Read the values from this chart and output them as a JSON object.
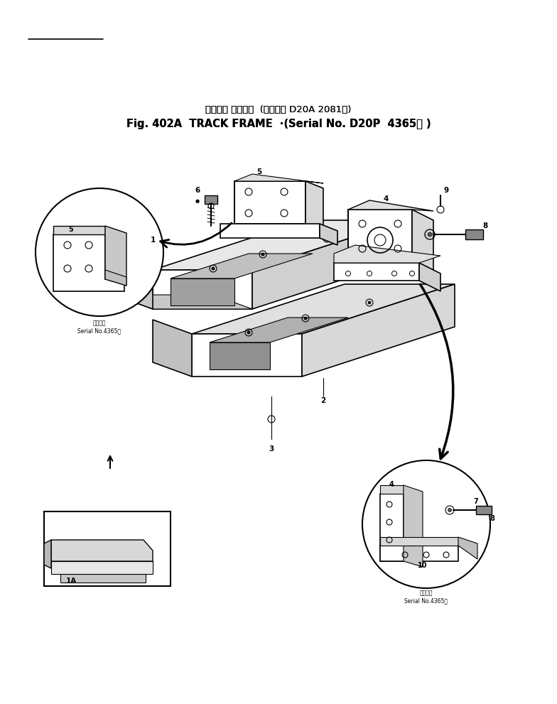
{
  "title_line1": "トラック フレーム  (適用号機 D20A 2081～)",
  "title_line2": "Fig. 402A  TRACK FRAME  ·(Serial No. D20P  4365～ )",
  "bg_color": "#ffffff",
  "line_color": "#000000",
  "text_color": "#000000",
  "fig_width": 7.84,
  "fig_height": 9.91,
  "dpi": 100
}
